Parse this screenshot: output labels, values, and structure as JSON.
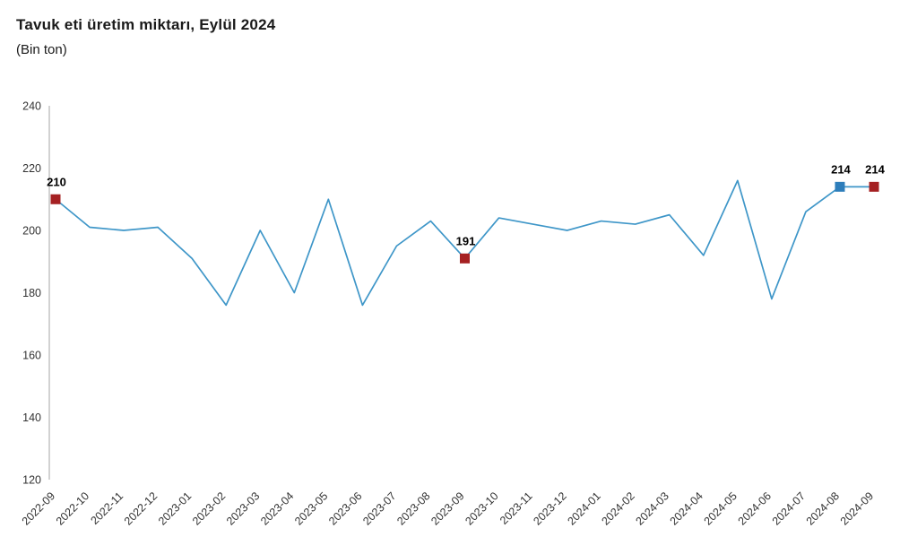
{
  "header": {
    "title": "Tavuk eti üretim miktarı, Eylül 2024",
    "subtitle": "(Bin ton)"
  },
  "chart_data": {
    "type": "line",
    "title": "Tavuk eti üretim miktarı, Eylül 2024",
    "subtitle": "(Bin ton)",
    "xlabel": "",
    "ylabel": "",
    "categories": [
      "2022-09",
      "2022-10",
      "2022-11",
      "2022-12",
      "2023-01",
      "2023-02",
      "2023-03",
      "2023-04",
      "2023-05",
      "2023-06",
      "2023-07",
      "2023-08",
      "2023-09",
      "2023-10",
      "2023-11",
      "2023-12",
      "2024-01",
      "2024-02",
      "2024-03",
      "2024-04",
      "2024-05",
      "2024-06",
      "2024-07",
      "2024-08",
      "2024-09"
    ],
    "values": [
      210,
      201,
      200,
      201,
      191,
      176,
      200,
      180,
      210,
      176,
      195,
      203,
      191,
      204,
      202,
      200,
      203,
      202,
      205,
      192,
      216,
      178,
      206,
      214,
      214
    ],
    "ylim": [
      120,
      240
    ],
    "yticks": [
      120,
      140,
      160,
      180,
      200,
      220,
      240
    ],
    "grid": false,
    "legend": false,
    "line_color": "#3E96C8",
    "axis_color": "#a6a6a6",
    "annotated_points": [
      {
        "index": 0,
        "value": 210,
        "label": "210",
        "color": "#A52022"
      },
      {
        "index": 12,
        "value": 191,
        "label": "191",
        "color": "#A52022"
      },
      {
        "index": 23,
        "value": 214,
        "label": "214",
        "color": "#2E7EBB"
      },
      {
        "index": 24,
        "value": 214,
        "label": "214",
        "color": "#A52022"
      }
    ]
  }
}
